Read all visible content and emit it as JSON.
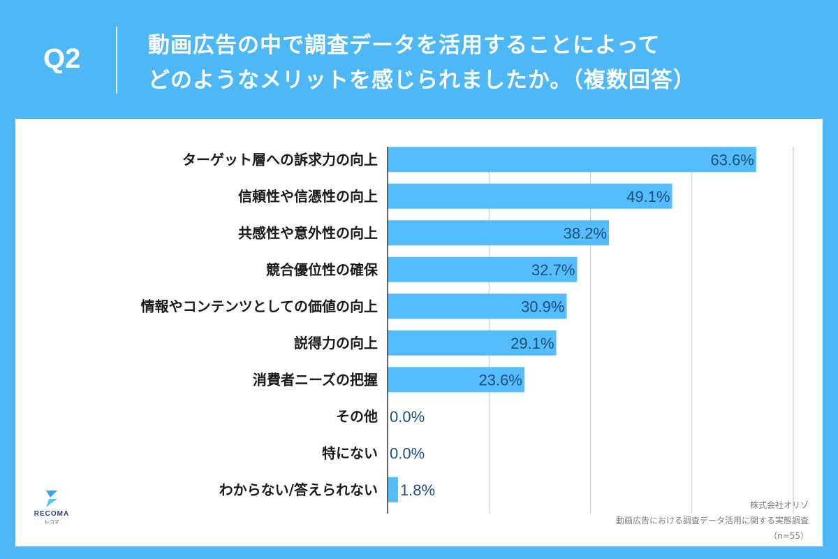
{
  "header": {
    "question": "Q2",
    "title_line1": "動画広告の中で調査データを活用することによって",
    "title_line2": "どのようなメリットを感じられましたか。（複数回答）"
  },
  "colors": {
    "background": "#4db8f5",
    "bar": "#55bdfc",
    "value_text": "#1a4f7a",
    "category_text": "#1a1a1a"
  },
  "chart_data": {
    "type": "bar",
    "orientation": "horizontal",
    "categories": [
      "ターゲット層への訴求力の向上",
      "信頼性や信憑性の向上",
      "共感性や意外性の向上",
      "競合優位性の確保",
      "情報やコンテンツとしての価値の向上",
      "説得力の向上",
      "消費者ニーズの把握",
      "その他",
      "特にない",
      "わからない/答えられない"
    ],
    "values": [
      63.6,
      49.1,
      38.2,
      32.7,
      30.9,
      29.1,
      23.6,
      0.0,
      0.0,
      1.8
    ],
    "value_labels": [
      "63.6%",
      "49.1%",
      "38.2%",
      "32.7%",
      "30.9%",
      "29.1%",
      "23.6%",
      "0.0%",
      "0.0%",
      "1.8%"
    ],
    "xlim": [
      0,
      70
    ],
    "gridline_values": [
      0,
      17.5,
      35,
      52.5,
      70
    ],
    "grid": true
  },
  "logo": {
    "name": "RECOMA",
    "sub": "レコマ"
  },
  "source": {
    "company": "株式会社オリゾ",
    "survey": "動画広告における調査データ活用に関する実態調査",
    "sample": "（n=55）"
  }
}
